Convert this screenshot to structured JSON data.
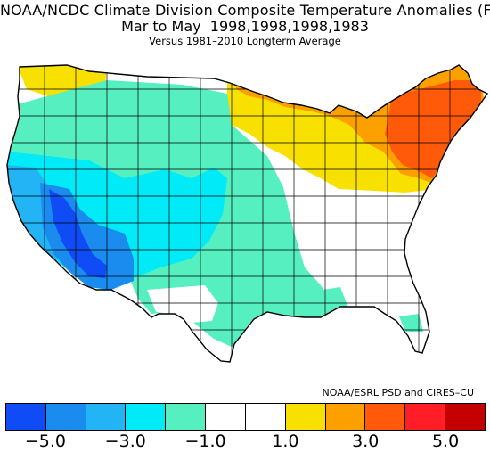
{
  "title": {
    "line1": "NOAA/NCDC Climate Division Composite Temperature Anomalies (F)",
    "line2": "Mar to May  1998,1998,1998,1983",
    "line3": "Versus 1981–2010 Longterm Average"
  },
  "credit": "NOAA/ESRL PSD and CIRES–CU",
  "legend": {
    "colors": [
      "#0f4cf5",
      "#1a8cf0",
      "#22b4f5",
      "#00eaf7",
      "#55efc0",
      "#ffffff",
      "#ffffff",
      "#f8e000",
      "#fca000",
      "#ff5a0a",
      "#ff1e28",
      "#c40000"
    ],
    "ticks": [
      "−5.0",
      "−3.0",
      "−1.0",
      "1.0",
      "3.0",
      "5.0"
    ]
  },
  "map": {
    "regions": {
      "northern-tier": "#f8e000",
      "northeast": "#fca000",
      "northeast-core": "#ff5a0a",
      "pacific-northwest": "#55efc0",
      "northern-rockies": "#55efc0",
      "great-plains": "#55efc0",
      "gulf-coast": "#55efc0",
      "california": "#22b4f5",
      "great-basin": "#00eaf7",
      "southwest-core": "#1a8cf0",
      "arizona-low": "#0f4cf5",
      "four-corners": "#00eaf7",
      "midwest-south": "#ffffff",
      "texas-west": "#ffffff"
    }
  }
}
